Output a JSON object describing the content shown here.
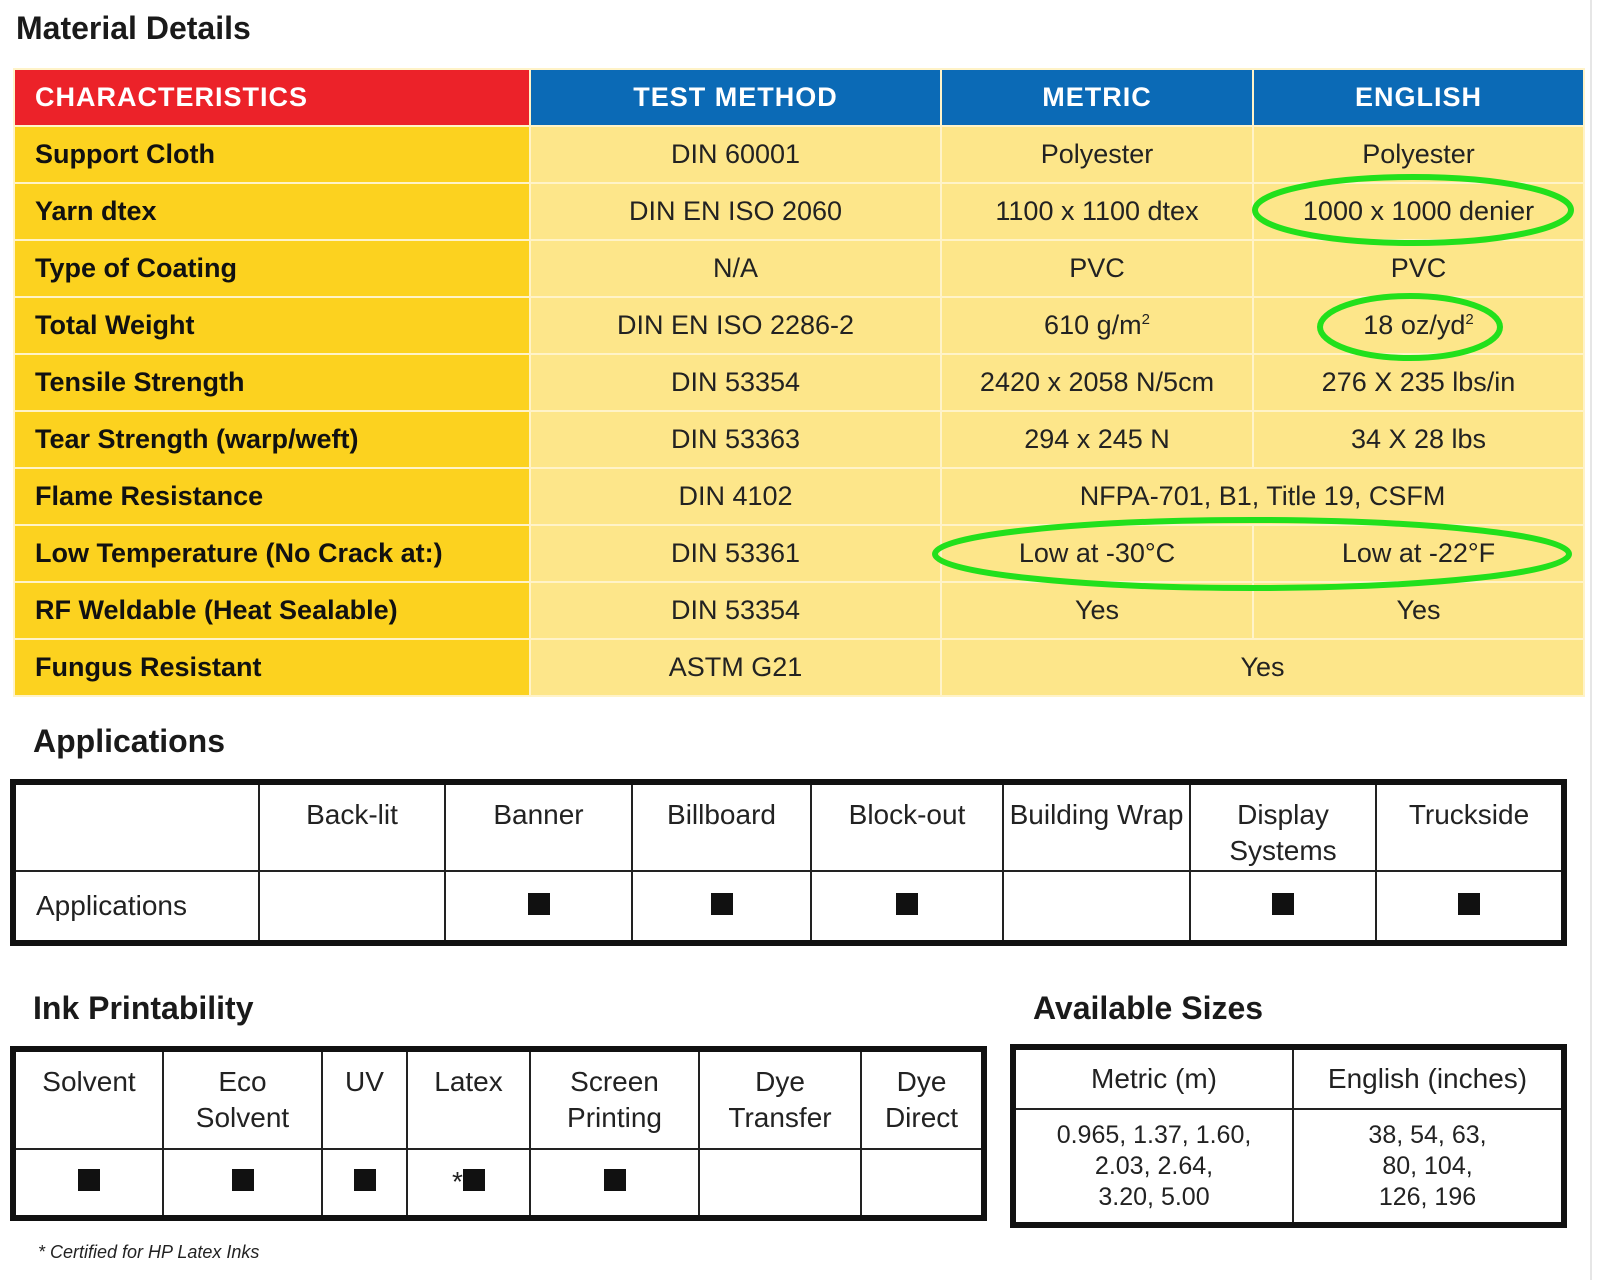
{
  "material": {
    "title": "Material Details",
    "headers": [
      "CHARACTERISTICS",
      "TEST METHOD",
      "METRIC",
      "ENGLISH"
    ],
    "rows": [
      [
        "Support Cloth",
        "DIN 60001",
        "Polyester",
        "Polyester"
      ],
      [
        "Yarn dtex",
        "DIN EN ISO 2060",
        "1100 x 1100 dtex",
        "1000 x 1000 denier"
      ],
      [
        "Type of Coating",
        "N/A",
        "PVC",
        "PVC"
      ],
      [
        "Total Weight",
        "DIN EN ISO 2286-2",
        "610 g/m",
        "18 oz/yd"
      ],
      [
        "Tensile Strength",
        "DIN 53354",
        "2420 x 2058 N/5cm",
        "276 X 235 lbs/in"
      ],
      [
        "Tear Strength (warp/weft)",
        "DIN 53363",
        "294 x 245 N",
        "34 X 28 lbs"
      ],
      [
        "Flame Resistance",
        "DIN 4102",
        "NFPA-701, B1, Title 19, CSFM"
      ],
      [
        "Low Temperature (No Crack at:)",
        "DIN 53361",
        "Low at -30°C",
        "Low at -22°F"
      ],
      [
        "RF Weldable (Heat Sealable)",
        "DIN 53354",
        "Yes",
        "Yes"
      ],
      [
        "Fungus Resistant",
        "ASTM G21",
        "Yes"
      ]
    ],
    "superscript": "2",
    "header_colors": {
      "characteristics": "#ec2229",
      "others": "#0b6ab6"
    },
    "highlight_color": "#22e01c"
  },
  "applications": {
    "title": "Applications",
    "row_label": "Applications",
    "columns": [
      "Back-lit",
      "Banner",
      "Billboard",
      "Block-out",
      "Building Wrap",
      "Display Systems",
      "Truckside"
    ],
    "checked": [
      false,
      true,
      true,
      true,
      false,
      true,
      true
    ]
  },
  "ink": {
    "title": "Ink Printability",
    "columns": [
      "Solvent",
      "Eco Solvent",
      "UV",
      "Latex",
      "Screen Printing",
      "Dye Transfer",
      "Dye Direct"
    ],
    "checked": [
      true,
      true,
      true,
      true,
      true,
      false,
      false
    ],
    "latex_mark": "*"
  },
  "sizes": {
    "title": "Available Sizes",
    "headers": [
      "Metric (m)",
      "English (inches)"
    ],
    "metric": [
      "0.965, 1.37, 1.60,",
      "2.03,  2.64,",
      "3.20, 5.00"
    ],
    "english": [
      "38, 54, 63,",
      "80, 104,",
      "126, 196"
    ]
  },
  "footnote": "* Certified for HP Latex Inks"
}
